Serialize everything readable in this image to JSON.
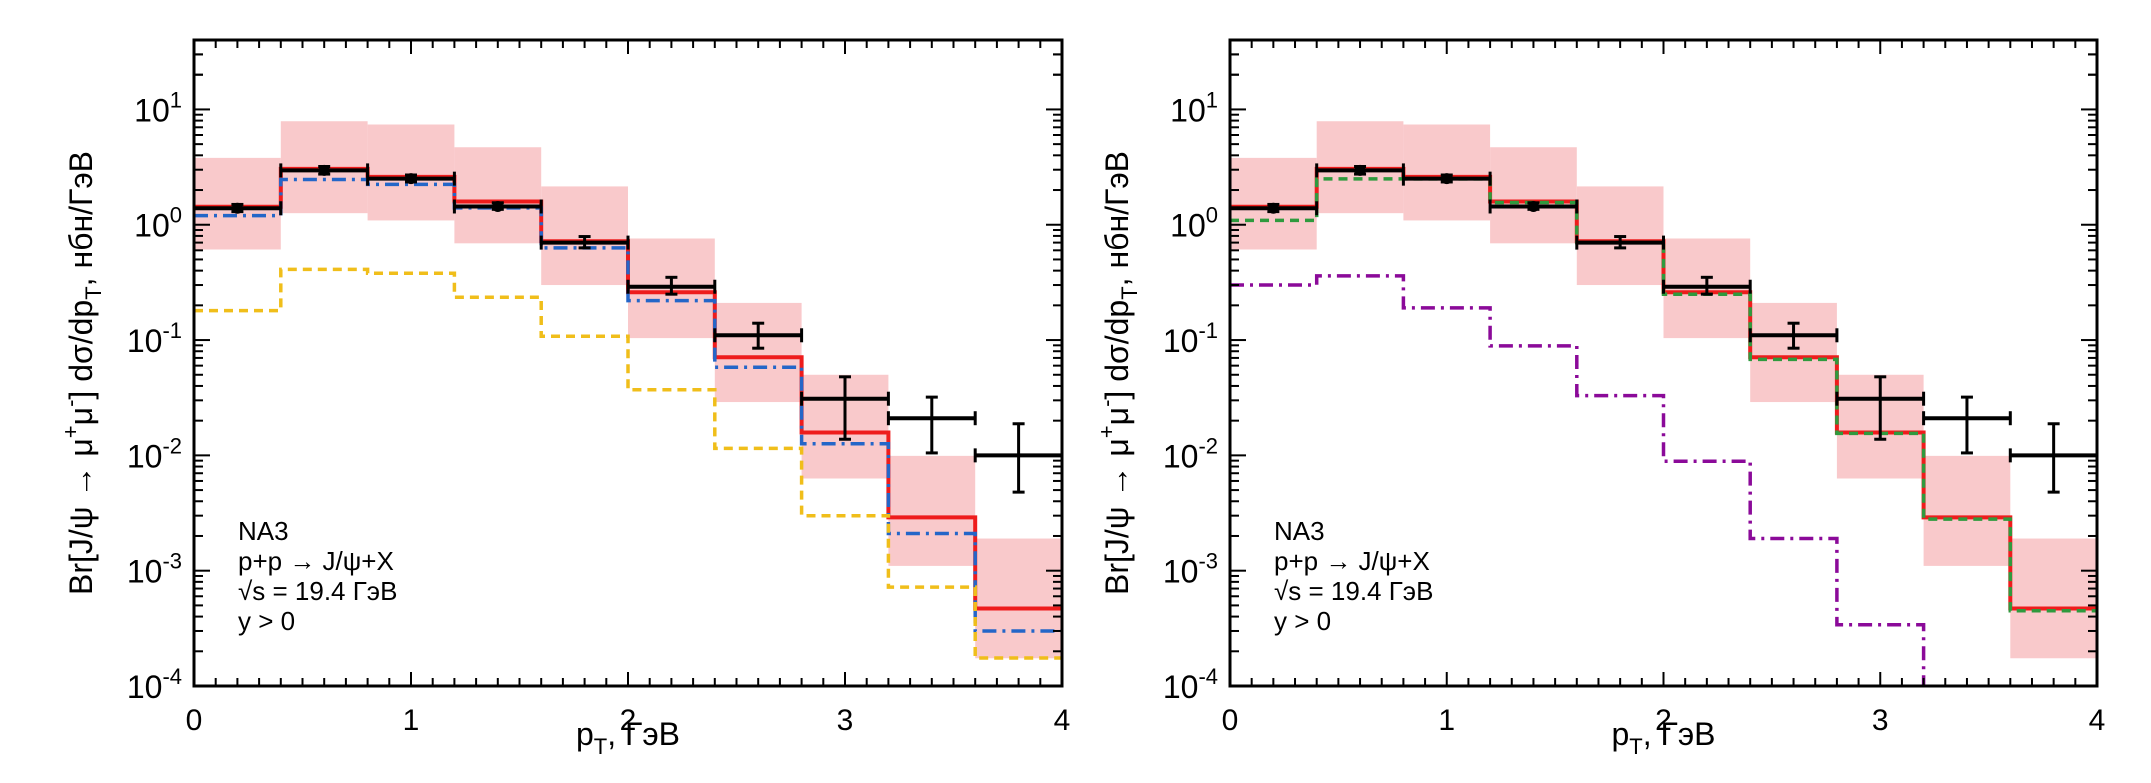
{
  "chart_data": [
    {
      "type": "histogram-step",
      "panel": "left",
      "xlabel": "p_T, ГэВ",
      "xlabel_parts": {
        "main": "p",
        "sub": "T",
        "rest": ", ГэВ"
      },
      "ylabel_parts": {
        "a": "Br[J/ψ → μ",
        "sup1": "+",
        "b": "μ",
        "sup2": "-",
        "c": "] dσ/dp",
        "sub": "T",
        "d": ", нбн/ГэВ"
      },
      "xlim": [
        0,
        4
      ],
      "ylim": [
        0.0001,
        40
      ],
      "yscale": "log",
      "xticks": [
        "0",
        "1",
        "2",
        "3",
        "4"
      ],
      "yticks": [
        {
          "value": 10,
          "base": "10",
          "exp": "1"
        },
        {
          "value": 1,
          "base": "10",
          "exp": "0"
        },
        {
          "value": 0.1,
          "base": "10",
          "exp": "-1"
        },
        {
          "value": 0.01,
          "base": "10",
          "exp": "-2"
        },
        {
          "value": 0.001,
          "base": "10",
          "exp": "-3"
        },
        {
          "value": 0.0001,
          "base": "10",
          "exp": "-4"
        }
      ],
      "annotation": [
        "NA3",
        "p+p → J/ψ+X",
        "√s = 19.4 ГэВ",
        "y > 0"
      ],
      "bin_edges": [
        0,
        0.4,
        0.8,
        1.2,
        1.6,
        2.0,
        2.4,
        2.8,
        3.2,
        3.6,
        4.0
      ],
      "band": {
        "name": "theory uncertainty band",
        "color": "#f9c9cb",
        "low": [
          0.61,
          1.26,
          1.09,
          0.69,
          0.3,
          0.104,
          0.029,
          0.0063,
          0.0011,
          0.000174
        ],
        "high": [
          3.8,
          7.9,
          7.4,
          4.7,
          2.15,
          0.76,
          0.21,
          0.05,
          0.0099,
          0.0019
        ]
      },
      "series": [
        {
          "name": "total (red solid)",
          "color": "#ee1c1c",
          "style": "solid",
          "values": [
            1.43,
            3.05,
            2.6,
            1.59,
            0.72,
            0.26,
            0.071,
            0.0158,
            0.0029,
            0.00047
          ]
        },
        {
          "name": "blue dash-dot",
          "color": "#2466c8",
          "style": "dashdot",
          "values": [
            1.2,
            2.47,
            2.24,
            1.4,
            0.63,
            0.22,
            0.058,
            0.0126,
            0.0021,
            0.0003
          ]
        },
        {
          "name": "yellow dashed",
          "color": "#f0be1a",
          "style": "dashed",
          "values": [
            0.18,
            0.41,
            0.38,
            0.235,
            0.108,
            0.037,
            0.0115,
            0.003,
            0.00072,
            0.000175
          ]
        }
      ],
      "data_points": {
        "name": "NA3 data",
        "color": "#000000",
        "x": [
          0.2,
          0.6,
          1.0,
          1.4,
          1.8,
          2.2,
          2.6,
          3.0,
          3.4,
          3.8
        ],
        "xerr": 0.2,
        "y": [
          1.39,
          2.96,
          2.51,
          1.44,
          0.7,
          0.29,
          0.11,
          0.031,
          0.021,
          0.01
        ],
        "yerr_low": [
          1.3,
          2.75,
          2.35,
          1.36,
          0.63,
          0.25,
          0.085,
          0.0138,
          0.0105,
          0.0048
        ],
        "yerr_high": [
          1.5,
          3.2,
          2.7,
          1.55,
          0.79,
          0.35,
          0.14,
          0.048,
          0.032,
          0.0188
        ],
        "show_marker": [
          true,
          true,
          true,
          true,
          false,
          false,
          false,
          false,
          false,
          false
        ]
      }
    },
    {
      "type": "histogram-step",
      "panel": "right",
      "xlabel": "p_T, ГэВ",
      "xlabel_parts": {
        "main": "p",
        "sub": "T",
        "rest": ", ГэВ"
      },
      "ylabel_parts": {
        "a": "Br[J/ψ → μ",
        "sup1": "+",
        "b": "μ",
        "sup2": "-",
        "c": "] dσ/dp",
        "sub": "T",
        "d": ", нбн/ГэВ"
      },
      "xlim": [
        0,
        4
      ],
      "ylim": [
        0.0001,
        40
      ],
      "yscale": "log",
      "xticks": [
        "0",
        "1",
        "2",
        "3",
        "4"
      ],
      "yticks": [
        {
          "value": 10,
          "base": "10",
          "exp": "1"
        },
        {
          "value": 1,
          "base": "10",
          "exp": "0"
        },
        {
          "value": 0.1,
          "base": "10",
          "exp": "-1"
        },
        {
          "value": 0.01,
          "base": "10",
          "exp": "-2"
        },
        {
          "value": 0.001,
          "base": "10",
          "exp": "-3"
        },
        {
          "value": 0.0001,
          "base": "10",
          "exp": "-4"
        }
      ],
      "annotation": [
        "NA3",
        "p+p → J/ψ+X",
        "√s = 19.4 ГэВ",
        "y > 0"
      ],
      "bin_edges": [
        0,
        0.4,
        0.8,
        1.2,
        1.6,
        2.0,
        2.4,
        2.8,
        3.2,
        3.6,
        4.0
      ],
      "band": {
        "name": "theory uncertainty band",
        "color": "#f9c9cb",
        "low": [
          0.61,
          1.26,
          1.09,
          0.69,
          0.3,
          0.104,
          0.029,
          0.0063,
          0.0011,
          0.000174
        ],
        "high": [
          3.8,
          7.9,
          7.4,
          4.7,
          2.15,
          0.76,
          0.21,
          0.05,
          0.0099,
          0.0019
        ]
      },
      "series": [
        {
          "name": "total (red solid)",
          "color": "#ee1c1c",
          "style": "solid",
          "values": [
            1.43,
            3.05,
            2.6,
            1.59,
            0.72,
            0.26,
            0.071,
            0.0158,
            0.0029,
            0.00047
          ]
        },
        {
          "name": "green dashed",
          "color": "#2f9a3e",
          "style": "dashed",
          "values": [
            1.09,
            2.5,
            2.5,
            1.56,
            0.7,
            0.25,
            0.068,
            0.0155,
            0.0028,
            0.00045
          ]
        },
        {
          "name": "purple dash-dot",
          "color": "#8b0a99",
          "style": "dashdot",
          "values": [
            0.3,
            0.36,
            0.19,
            0.089,
            0.033,
            0.0089,
            0.0019,
            0.00034,
            1e-05,
            1e-05
          ]
        }
      ],
      "data_points": {
        "name": "NA3 data",
        "color": "#000000",
        "x": [
          0.2,
          0.6,
          1.0,
          1.4,
          1.8,
          2.2,
          2.6,
          3.0,
          3.4,
          3.8
        ],
        "xerr": 0.2,
        "y": [
          1.39,
          2.96,
          2.51,
          1.44,
          0.7,
          0.29,
          0.11,
          0.031,
          0.021,
          0.01
        ],
        "yerr_low": [
          1.3,
          2.75,
          2.35,
          1.36,
          0.63,
          0.25,
          0.085,
          0.0138,
          0.0105,
          0.0048
        ],
        "yerr_high": [
          1.5,
          3.2,
          2.7,
          1.55,
          0.79,
          0.35,
          0.14,
          0.048,
          0.032,
          0.0188
        ],
        "show_marker": [
          true,
          true,
          true,
          true,
          false,
          false,
          false,
          false,
          false,
          false
        ]
      }
    }
  ]
}
